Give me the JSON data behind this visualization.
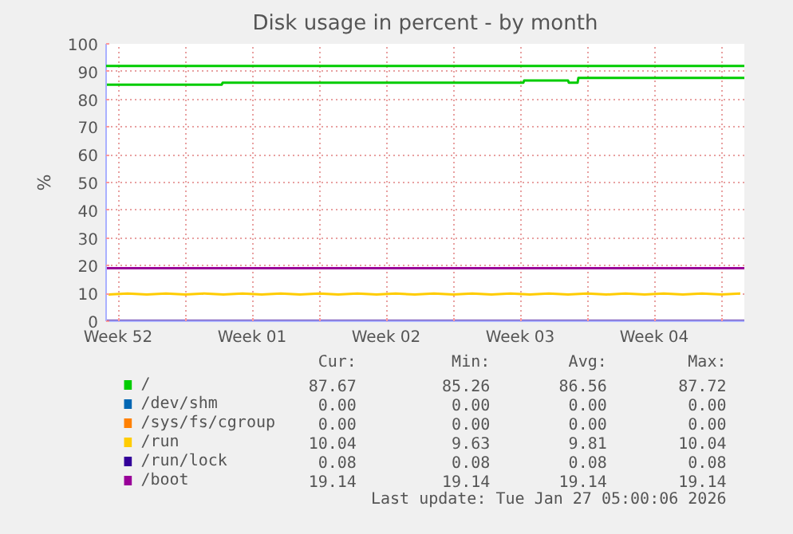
{
  "chart_data": {
    "type": "line",
    "title": "Disk usage in percent - by month",
    "ylabel": "%",
    "xlim": [
      "2025-12-24T21:00",
      "2026-01-27T05:00"
    ],
    "xticks": [
      {
        "value": "2025-12-25T12:00",
        "label": "Week 52"
      },
      {
        "value": "2025-12-29T00:00",
        "label": null
      },
      {
        "value": "2026-01-01T12:00",
        "label": "Week 01"
      },
      {
        "value": "2026-01-05T00:00",
        "label": null
      },
      {
        "value": "2026-01-08T12:00",
        "label": "Week 02"
      },
      {
        "value": "2026-01-12T00:00",
        "label": null
      },
      {
        "value": "2026-01-15T12:00",
        "label": "Week 03"
      },
      {
        "value": "2026-01-19T00:00",
        "label": null
      },
      {
        "value": "2026-01-22T12:00",
        "label": "Week 04"
      },
      {
        "value": "2026-01-26T00:00",
        "label": null
      }
    ],
    "ylim": [
      0,
      100
    ],
    "yticks": [
      0,
      10,
      20,
      30,
      40,
      50,
      60,
      70,
      80,
      90,
      100
    ],
    "grid": true,
    "legend": "bottom",
    "line_style": "solid",
    "series": [
      {
        "name": "/",
        "color": "#00cc00",
        "x": [
          "2025-12-24T21:00",
          "2025-12-30T22:00",
          "2025-12-30T23:00",
          "2026-01-15T16:00",
          "2026-01-15T17:00",
          "2026-01-18T00:00",
          "2026-01-18T01:00",
          "2026-01-18T12:00",
          "2026-01-18T13:00",
          "2026-01-27T05:00"
        ],
        "values": [
          85.3,
          85.3,
          86.0,
          86.0,
          86.8,
          86.8,
          86.0,
          86.0,
          87.7,
          87.7
        ]
      },
      {
        "name": "/dev/shm",
        "color": "#0066b3"
      },
      {
        "name": "/sys/fs/cgroup",
        "color": "#ff8000"
      },
      {
        "name": "/run",
        "color": "#ffcc00",
        "x": [
          "2025-12-25",
          "2025-12-26",
          "2025-12-27",
          "2025-12-28",
          "2025-12-29",
          "2025-12-30",
          "2025-12-31",
          "2026-01-01",
          "2026-01-02",
          "2026-01-03",
          "2026-01-04",
          "2026-01-05",
          "2026-01-06",
          "2026-01-07",
          "2026-01-08",
          "2026-01-09",
          "2026-01-10",
          "2026-01-11",
          "2026-01-12",
          "2026-01-13",
          "2026-01-14",
          "2026-01-15",
          "2026-01-16",
          "2026-01-17",
          "2026-01-18",
          "2026-01-19",
          "2026-01-20",
          "2026-01-21",
          "2026-01-22",
          "2026-01-23",
          "2026-01-24",
          "2026-01-25",
          "2026-01-26",
          "2026-01-27"
        ],
        "values": [
          9.6,
          10.0,
          9.6,
          10.0,
          9.6,
          10.0,
          9.6,
          10.0,
          9.6,
          10.0,
          9.6,
          10.0,
          9.6,
          10.0,
          9.6,
          10.0,
          9.6,
          10.0,
          9.6,
          10.0,
          9.6,
          10.0,
          9.6,
          10.0,
          9.6,
          10.0,
          9.6,
          10.0,
          9.6,
          10.0,
          9.6,
          10.0,
          9.6,
          10.0
        ]
      },
      {
        "name": "/run/lock",
        "color": "#330099",
        "x": [
          "2025-12-24T21:00",
          "2026-01-27T05:00"
        ],
        "values": [
          0.1,
          0.1
        ]
      },
      {
        "name": "/boot",
        "color": "#990099",
        "x": [
          "2025-12-24T21:00",
          "2026-01-27T05:00"
        ],
        "values": [
          19.1,
          19.1
        ]
      }
    ],
    "ref_lines": [
      {
        "axis": "y",
        "value": 92,
        "label": null,
        "color": "#00cc00"
      }
    ],
    "annotations": [
      "Cur:",
      "Min:",
      "Avg:",
      "Max:",
      "87.67",
      "85.26",
      "86.56",
      "87.72",
      "0.00",
      "0.00",
      "0.00",
      "0.00",
      "0.00",
      "0.00",
      "0.00",
      "0.00",
      "10.04",
      "9.63",
      "9.81",
      "10.04",
      "0.08",
      "0.08",
      "0.08",
      "0.08",
      "19.14",
      "19.14",
      "19.14",
      "19.14",
      "Last update: Tue Jan 27 05:00:06 2026"
    ]
  }
}
